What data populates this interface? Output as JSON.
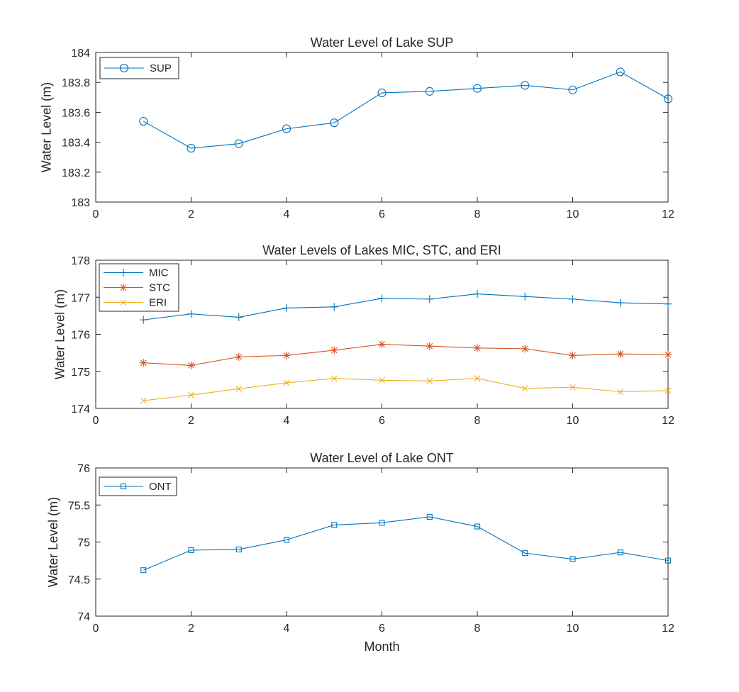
{
  "chart_data": [
    {
      "type": "line",
      "title": "Water Level of Lake SUP",
      "xlabel": "",
      "ylabel": "Water Level (m)",
      "xlim": [
        0,
        12
      ],
      "ylim": [
        183,
        184
      ],
      "xticks": [
        0,
        2,
        4,
        6,
        8,
        10,
        12
      ],
      "yticks": [
        183,
        183.2,
        183.4,
        183.6,
        183.8,
        184
      ],
      "ytick_labels": [
        "183",
        "183.2",
        "183.4",
        "183.6",
        "183.8",
        "184"
      ],
      "legend_position": "top-left",
      "x": [
        1,
        2,
        3,
        4,
        5,
        6,
        7,
        8,
        9,
        10,
        11,
        12
      ],
      "series": [
        {
          "name": "SUP",
          "color": "#0072BD",
          "marker": "circle",
          "values": [
            183.54,
            183.36,
            183.39,
            183.49,
            183.53,
            183.73,
            183.74,
            183.76,
            183.78,
            183.75,
            183.87,
            183.69
          ]
        }
      ]
    },
    {
      "type": "line",
      "title": "Water Levels of Lakes MIC, STC, and ERI",
      "xlabel": "",
      "ylabel": "Water Level (m)",
      "xlim": [
        0,
        12
      ],
      "ylim": [
        174,
        178
      ],
      "xticks": [
        0,
        2,
        4,
        6,
        8,
        10,
        12
      ],
      "yticks": [
        174,
        175,
        176,
        177,
        178
      ],
      "ytick_labels": [
        "174",
        "175",
        "176",
        "177",
        "178"
      ],
      "legend_position": "top-left",
      "x": [
        1,
        2,
        3,
        4,
        5,
        6,
        7,
        8,
        9,
        10,
        11,
        12
      ],
      "series": [
        {
          "name": "MIC",
          "color": "#0072BD",
          "marker": "plus",
          "values": [
            176.39,
            176.55,
            176.46,
            176.71,
            176.74,
            176.97,
            176.95,
            177.09,
            177.02,
            176.95,
            176.85,
            176.82
          ]
        },
        {
          "name": "STC",
          "color": "#D95319",
          "marker": "asterisk",
          "values": [
            175.23,
            175.16,
            175.39,
            175.43,
            175.57,
            175.73,
            175.68,
            175.63,
            175.61,
            175.43,
            175.47,
            175.45
          ]
        },
        {
          "name": "ERI",
          "color": "#EDB120",
          "marker": "x",
          "values": [
            174.21,
            174.36,
            174.53,
            174.69,
            174.81,
            174.76,
            174.74,
            174.81,
            174.54,
            174.57,
            174.45,
            174.48
          ]
        }
      ]
    },
    {
      "type": "line",
      "title": "Water Level of Lake ONT",
      "xlabel": "Month",
      "ylabel": "Water Level (m)",
      "xlim": [
        0,
        12
      ],
      "ylim": [
        74,
        76
      ],
      "xticks": [
        0,
        2,
        4,
        6,
        8,
        10,
        12
      ],
      "yticks": [
        74,
        74.5,
        75,
        75.5,
        76
      ],
      "ytick_labels": [
        "74",
        "74.5",
        "75",
        "75.5",
        "76"
      ],
      "legend_position": "top-left",
      "x": [
        1,
        2,
        3,
        4,
        5,
        6,
        7,
        8,
        9,
        10,
        11,
        12
      ],
      "series": [
        {
          "name": "ONT",
          "color": "#0072BD",
          "marker": "square",
          "values": [
            74.62,
            74.89,
            74.9,
            75.03,
            75.23,
            75.26,
            75.34,
            75.21,
            74.85,
            74.77,
            74.86,
            74.75
          ]
        }
      ]
    }
  ]
}
